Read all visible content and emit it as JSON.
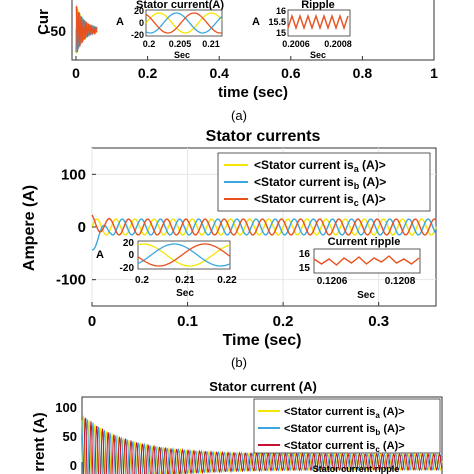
{
  "panel_a": {
    "ylabel_fragment": "Cur",
    "ytick": "-50",
    "xlabel": "time (sec)",
    "caption": "(a)",
    "xticks": [
      "0",
      "0.2",
      "0.4",
      "0.6",
      "0.8",
      "1"
    ],
    "inset_left": {
      "title": "Stator current(A)",
      "ylabel": "A",
      "yticks": [
        "20",
        "0",
        "-20"
      ],
      "xticks": [
        "0.2",
        "0.205",
        "0.21"
      ],
      "xlabel": "Sec"
    },
    "inset_right": {
      "title": "Ripple",
      "ylabel": "A",
      "yticks": [
        "16",
        "15.5",
        "15"
      ],
      "xticks": [
        "0.2006",
        "0.2008"
      ],
      "xlabel": "Sec"
    }
  },
  "panel_b": {
    "title": "Stator currents",
    "ylabel": "Ampere (A)",
    "xlabel": "Time (sec)",
    "caption": "(b)",
    "yticks": [
      "100",
      "0",
      "-100"
    ],
    "xticks": [
      "0",
      "0.1",
      "0.2",
      "0.3"
    ],
    "legend": [
      {
        "prefix": "<Stator current is",
        "sub": "a",
        "suffix": " (A)>",
        "color": "#f2e600"
      },
      {
        "prefix": "<Stator current is",
        "sub": "b",
        "suffix": " (A)>",
        "color": "#3aa7e0"
      },
      {
        "prefix": "<Stator current is",
        "sub": "c",
        "suffix": " (A)>",
        "color": "#e8501e"
      }
    ],
    "inset_left": {
      "ylabel": "A",
      "yticks": [
        "20",
        "0",
        "-20"
      ],
      "xticks": [
        "0.2",
        "0.21",
        "0.22"
      ],
      "xlabel": "Sec"
    },
    "inset_right": {
      "title": "Current ripple",
      "yticks": [
        "16",
        "15"
      ],
      "xticks": [
        "0.1206",
        "0.1208"
      ],
      "xlabel": "Sec"
    }
  },
  "panel_c": {
    "title": "Stator current (A)",
    "ylabel_fragment": "rrent (A)",
    "yticks": [
      "100",
      "50",
      "0"
    ],
    "inset_fragment": "Stator current ripple",
    "legend": [
      {
        "prefix": "<Stator current is",
        "sub": "a",
        "suffix": " (A)>",
        "color": "#f2e600"
      },
      {
        "prefix": "<Stator current is",
        "sub": "b",
        "suffix": " (A)>",
        "color": "#3aa7e0"
      },
      {
        "prefix": "<Stator current is",
        "sub": "c",
        "suffix": " (A)>",
        "color": "#c8102e"
      }
    ]
  },
  "chart_data": [
    {
      "type": "line",
      "x": [
        0,
        0.2,
        0.4,
        0.6,
        0.8,
        1
      ],
      "xlabel": "time (sec)",
      "ylabel": "",
      "xlim": [
        0,
        1
      ],
      "series_colors": [
        "#f2e600",
        "#3aa7e0",
        "#e8501e"
      ],
      "note_visible_ticks": [
        "-50"
      ]
    },
    {
      "type": "line",
      "title": "Stator currents",
      "xlabel": "Time (sec)",
      "ylabel": "Ampere (A)",
      "xlim": [
        0,
        0.36
      ],
      "ylim": [
        -150,
        150
      ],
      "series": [
        {
          "name": "<Stator current is_a (A)>",
          "color": "#f2e600",
          "amplitude": 15,
          "frequency_hz": 50,
          "phase_deg": 0
        },
        {
          "name": "<Stator current is_b (A)>",
          "color": "#3aa7e0",
          "amplitude": 15,
          "frequency_hz": 50,
          "phase_deg": -120
        },
        {
          "name": "<Stator current is_c (A)>",
          "color": "#e8501e",
          "amplitude": 15,
          "frequency_hz": 50,
          "phase_deg": 120
        }
      ],
      "legend": "top-right"
    },
    {
      "type": "line",
      "title": "Stator current (A)",
      "ylabel": "",
      "ylim": [
        0,
        100
      ],
      "series": [
        {
          "name": "<Stator current is_a (A)>",
          "color": "#f2e600"
        },
        {
          "name": "<Stator current is_b (A)>",
          "color": "#3aa7e0"
        },
        {
          "name": "<Stator current is_c (A)>",
          "color": "#c8102e"
        }
      ],
      "legend": "top-right"
    }
  ]
}
